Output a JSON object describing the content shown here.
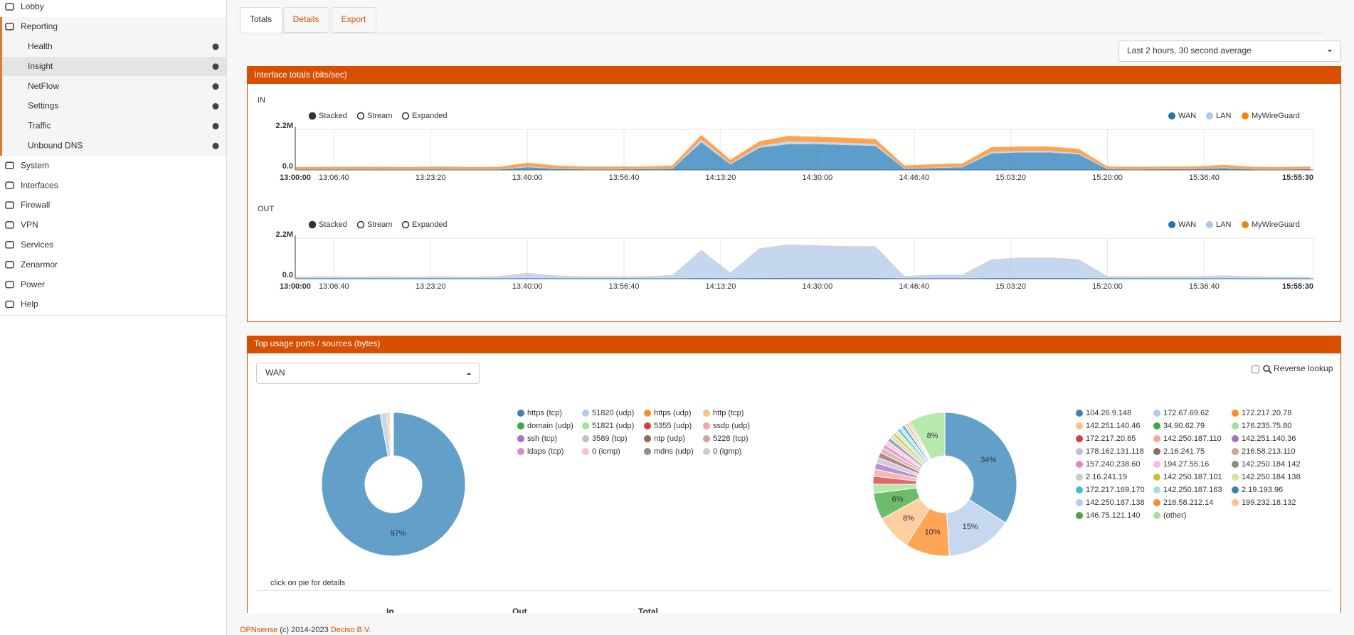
{
  "sidebar": {
    "items": [
      {
        "label": "Lobby",
        "level": 0
      },
      {
        "label": "Reporting",
        "level": 0
      },
      {
        "label": "Health",
        "level": 1
      },
      {
        "label": "Insight",
        "level": 1,
        "active": true
      },
      {
        "label": "NetFlow",
        "level": 1
      },
      {
        "label": "Settings",
        "level": 1
      },
      {
        "label": "Traffic",
        "level": 1
      },
      {
        "label": "Unbound DNS",
        "level": 1
      },
      {
        "label": "System",
        "level": 0
      },
      {
        "label": "Interfaces",
        "level": 0
      },
      {
        "label": "Firewall",
        "level": 0
      },
      {
        "label": "VPN",
        "level": 0
      },
      {
        "label": "Services",
        "level": 0
      },
      {
        "label": "Zenarmor",
        "level": 0
      },
      {
        "label": "Power",
        "level": 0
      },
      {
        "label": "Help",
        "level": 0
      }
    ]
  },
  "tabs": [
    "Totals",
    "Details",
    "Export"
  ],
  "period_select": "Last 2 hours, 30 second average",
  "panels": [
    {
      "title": "Interface totals (bits/sec)"
    },
    {
      "title": "Top usage ports / sources (bytes)"
    }
  ],
  "interface_select": "WAN",
  "reverse_lookup": "Reverse lookup",
  "hint": "click on pie for details",
  "table_headers": [
    "In",
    "Out",
    "Total"
  ],
  "footer": {
    "brand": "OPNsense",
    "copyright": " (c) 2014-2023 ",
    "company": "Deciso B.V."
  },
  "chart_data": [
    {
      "type": "area",
      "label": "IN",
      "modes": [
        "Stacked",
        "Stream",
        "Expanded"
      ],
      "mode": "Stacked",
      "xlim": [
        "13:00:00",
        "15:55:30"
      ],
      "xticks": [
        "13:00:00",
        "13:06:40",
        "13:23:20",
        "13:40:00",
        "13:56:40",
        "14:13:20",
        "14:30:00",
        "14:46:40",
        "15:03:20",
        "15:20:00",
        "15:36:40",
        "15:55:30"
      ],
      "ylim": [
        0,
        2200000
      ],
      "yticks": [
        {
          "value": 0,
          "label": "0.0"
        },
        {
          "value": 2200000,
          "label": "2.2M"
        }
      ],
      "x": [
        "13:00:00",
        "13:05:00",
        "13:10:00",
        "13:15:00",
        "13:20:00",
        "13:25:00",
        "13:30:00",
        "13:35:00",
        "13:40:00",
        "13:45:00",
        "13:50:00",
        "13:55:00",
        "14:00:00",
        "14:05:00",
        "14:10:00",
        "14:15:00",
        "14:20:00",
        "14:25:00",
        "14:30:00",
        "14:35:00",
        "14:40:00",
        "14:45:00",
        "14:50:00",
        "14:55:00",
        "15:00:00",
        "15:05:00",
        "15:10:00",
        "15:15:00",
        "15:20:00",
        "15:25:00",
        "15:30:00",
        "15:35:00",
        "15:40:00",
        "15:45:00",
        "15:50:00",
        "15:55:00"
      ],
      "series": [
        {
          "name": "WAN",
          "color": "#1f77b4",
          "values": [
            20000,
            20000,
            30000,
            20000,
            20000,
            30000,
            20000,
            20000,
            150000,
            60000,
            30000,
            30000,
            40000,
            60000,
            1500000,
            300000,
            1200000,
            1400000,
            1400000,
            1350000,
            1300000,
            60000,
            100000,
            150000,
            900000,
            950000,
            950000,
            850000,
            40000,
            30000,
            40000,
            50000,
            100000,
            30000,
            20000,
            50000
          ]
        },
        {
          "name": "LAN",
          "color": "#aec7e8",
          "values": [
            20000,
            20000,
            20000,
            20000,
            20000,
            20000,
            20000,
            20000,
            40000,
            30000,
            20000,
            20000,
            20000,
            30000,
            150000,
            50000,
            100000,
            150000,
            120000,
            120000,
            110000,
            30000,
            30000,
            30000,
            80000,
            80000,
            80000,
            70000,
            20000,
            20000,
            20000,
            20000,
            30000,
            20000,
            20000,
            20000
          ]
        },
        {
          "name": "MyWireGuard",
          "color": "#ff7f0e",
          "values": [
            120000,
            130000,
            120000,
            130000,
            120000,
            130000,
            120000,
            130000,
            200000,
            150000,
            130000,
            130000,
            120000,
            150000,
            250000,
            200000,
            250000,
            300000,
            280000,
            280000,
            270000,
            150000,
            180000,
            170000,
            250000,
            240000,
            240000,
            230000,
            130000,
            120000,
            130000,
            120000,
            150000,
            120000,
            120000,
            120000
          ]
        }
      ]
    },
    {
      "type": "area",
      "label": "OUT",
      "modes": [
        "Stacked",
        "Stream",
        "Expanded"
      ],
      "mode": "Stacked",
      "xlim": [
        "13:00:00",
        "15:55:30"
      ],
      "xticks": [
        "13:00:00",
        "13:06:40",
        "13:23:20",
        "13:40:00",
        "13:56:40",
        "14:13:20",
        "14:30:00",
        "14:46:40",
        "15:03:20",
        "15:20:00",
        "15:36:40",
        "15:55:30"
      ],
      "ylim": [
        0,
        2200000
      ],
      "yticks": [
        {
          "value": 0,
          "label": "0.0"
        },
        {
          "value": 2200000,
          "label": "2.2M"
        }
      ],
      "x": [
        "13:00:00",
        "13:05:00",
        "13:10:00",
        "13:15:00",
        "13:20:00",
        "13:25:00",
        "13:30:00",
        "13:35:00",
        "13:40:00",
        "13:45:00",
        "13:50:00",
        "13:55:00",
        "14:00:00",
        "14:05:00",
        "14:10:00",
        "14:15:00",
        "14:20:00",
        "14:25:00",
        "14:30:00",
        "14:35:00",
        "14:40:00",
        "14:45:00",
        "14:50:00",
        "14:55:00",
        "15:00:00",
        "15:05:00",
        "15:10:00",
        "15:15:00",
        "15:20:00",
        "15:25:00",
        "15:30:00",
        "15:35:00",
        "15:40:00",
        "15:45:00",
        "15:50:00",
        "15:55:00"
      ],
      "series": [
        {
          "name": "WAN",
          "color": "#1f77b4",
          "values": [
            20000,
            20000,
            20000,
            20000,
            20000,
            20000,
            20000,
            20000,
            30000,
            20000,
            20000,
            20000,
            20000,
            20000,
            40000,
            30000,
            40000,
            50000,
            50000,
            50000,
            50000,
            20000,
            20000,
            20000,
            40000,
            40000,
            40000,
            40000,
            20000,
            20000,
            20000,
            20000,
            20000,
            20000,
            20000,
            20000
          ]
        },
        {
          "name": "LAN",
          "color": "#aec7e8",
          "values": [
            90000,
            100000,
            90000,
            100000,
            90000,
            100000,
            90000,
            110000,
            280000,
            150000,
            100000,
            100000,
            100000,
            180000,
            1500000,
            300000,
            1600000,
            1800000,
            1750000,
            1700000,
            1700000,
            120000,
            200000,
            200000,
            1000000,
            1100000,
            1100000,
            1000000,
            110000,
            100000,
            110000,
            100000,
            160000,
            100000,
            90000,
            80000
          ]
        },
        {
          "name": "MyWireGuard",
          "color": "#ff7f0e",
          "values": [
            5000,
            5000,
            5000,
            5000,
            5000,
            5000,
            5000,
            5000,
            10000,
            5000,
            5000,
            5000,
            5000,
            5000,
            10000,
            5000,
            10000,
            10000,
            10000,
            10000,
            10000,
            5000,
            5000,
            5000,
            10000,
            10000,
            10000,
            10000,
            5000,
            5000,
            5000,
            5000,
            5000,
            5000,
            5000,
            5000
          ]
        }
      ]
    },
    {
      "type": "pie",
      "categories": [
        "https (tcp)",
        "51820 (udp)",
        "https (udp)",
        "http (tcp)",
        "domain (udp)",
        "51821 (udp)",
        "5355 (udp)",
        "ssdp (udp)",
        "ssh (tcp)",
        "3589 (tcp)",
        "ntp (udp)",
        "5228 (tcp)",
        "ldaps (tcp)",
        "0 (icmp)",
        "mdns (udp)",
        "0 (igmp)"
      ],
      "values": [
        97,
        1.5,
        0.4,
        0.3,
        0.2,
        0.15,
        0.1,
        0.1,
        0.05,
        0.05,
        0.03,
        0.03,
        0.03,
        0.02,
        0.02,
        0.02
      ],
      "value_labels": [
        "97%",
        null,
        null,
        null,
        null,
        null,
        null,
        null,
        null,
        null,
        null,
        null,
        null,
        null,
        null,
        null
      ],
      "colors": [
        "#1f77b4",
        "#aec7e8",
        "#ff7f0e",
        "#ffbb78",
        "#2ca02c",
        "#98df8a",
        "#d62728",
        "#ff9896",
        "#9467bd",
        "#c5b0d5",
        "#8c564b",
        "#c49c94",
        "#e377c2",
        "#f7b6d2",
        "#7f7f7f",
        "#c7c7c7"
      ]
    },
    {
      "type": "pie",
      "categories": [
        "104.26.9.148",
        "172.67.69.62",
        "172.217.20.78",
        "142.251.140.46",
        "34.90.62.79",
        "176.235.75.80",
        "172.217.20.65",
        "142.250.187.110",
        "142.251.140.36",
        "178.162.131.118",
        "2.16.241.75",
        "216.58.213.110",
        "157.240.238.60",
        "194.27.55.16",
        "142.250.184.142",
        "2.16.241.19",
        "142.250.187.101",
        "142.250.184.138",
        "172.217.169.170",
        "142.250.187.163",
        "2.19.193.96",
        "142.250.187.138",
        "216.58.212.14",
        "199.232.18.132",
        "146.75.121.140",
        "(other)"
      ],
      "values": [
        34,
        15,
        10,
        8,
        6,
        2,
        1.8,
        1.6,
        1.4,
        1.3,
        1.2,
        1.1,
        1,
        0.9,
        0.9,
        0.8,
        0.8,
        0.7,
        0.7,
        0.6,
        0.6,
        0.5,
        0.4,
        0.4,
        0.3,
        8
      ],
      "value_labels": [
        "34%",
        "15%",
        "10%",
        "8%",
        "6%",
        null,
        null,
        null,
        null,
        null,
        null,
        null,
        null,
        null,
        null,
        null,
        null,
        null,
        null,
        null,
        null,
        null,
        null,
        null,
        null,
        "8%"
      ],
      "colors": [
        "#1f77b4",
        "#aec7e8",
        "#ff7f0e",
        "#ffbb78",
        "#2ca02c",
        "#98df8a",
        "#d62728",
        "#ff9896",
        "#9467bd",
        "#c5b0d5",
        "#8c564b",
        "#c49c94",
        "#e377c2",
        "#f7b6d2",
        "#7f7f7f",
        "#c7c7c7",
        "#bcbd22",
        "#dbdb8d",
        "#17becf",
        "#9edae5",
        "#1f77b4",
        "#aec7e8",
        "#ff7f0e",
        "#ffbb78",
        "#2ca02c",
        "#98df8a"
      ]
    }
  ]
}
